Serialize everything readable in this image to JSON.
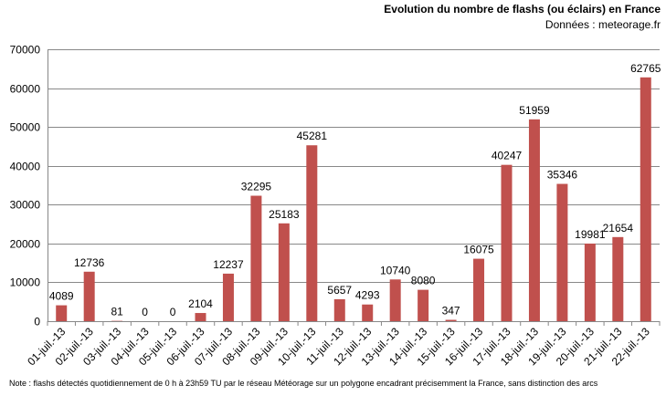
{
  "chart_data": {
    "type": "bar",
    "title": "Evolution du nombre de flashs (ou éclairs)  en France",
    "subtitle": "Données : meteorage.fr",
    "note": "Note : flashs détectés quotidiennement de 0 h à 23h59 TU par le réseau Météorage sur un polygone encadrant précisemment la France, sans distinction des arcs",
    "categories": [
      "01-juil.-13",
      "02-juil.-13",
      "03-juil.-13",
      "04-juil.-13",
      "05-juil.-13",
      "06-juil.-13",
      "07-juil.-13",
      "08-juil.-13",
      "09-juil.-13",
      "10-juil.-13",
      "11-juil.-13",
      "12-juil.-13",
      "13-juil.-13",
      "14-juil.-13",
      "15-juil.-13",
      "16-juil.-13",
      "17-juil.-13",
      "18-juil.-13",
      "19-juil.-13",
      "20-juil.-13",
      "21-juil.-13",
      "22-juil.-13"
    ],
    "values": [
      4089,
      12736,
      81,
      0,
      0,
      2104,
      12237,
      32295,
      25183,
      45281,
      5657,
      4293,
      10740,
      8080,
      347,
      16075,
      40247,
      51959,
      35346,
      19981,
      21654,
      62765
    ],
    "data_labels": [
      "4089",
      "12736",
      "81",
      "0",
      "0",
      "2104",
      "12237",
      "32295",
      "25183",
      "45281",
      "5657",
      "4293",
      "10740",
      "8080",
      "347",
      "16075",
      "40247",
      "51959",
      "35346",
      "19981",
      "21654",
      "62765"
    ],
    "ylim": [
      0,
      70000
    ],
    "yticks": [
      "0",
      "10000",
      "20000",
      "30000",
      "40000",
      "50000",
      "60000",
      "70000"
    ],
    "grid": true,
    "legend": "none",
    "bar_color": "#c0504d",
    "grid_color": "#888888"
  }
}
